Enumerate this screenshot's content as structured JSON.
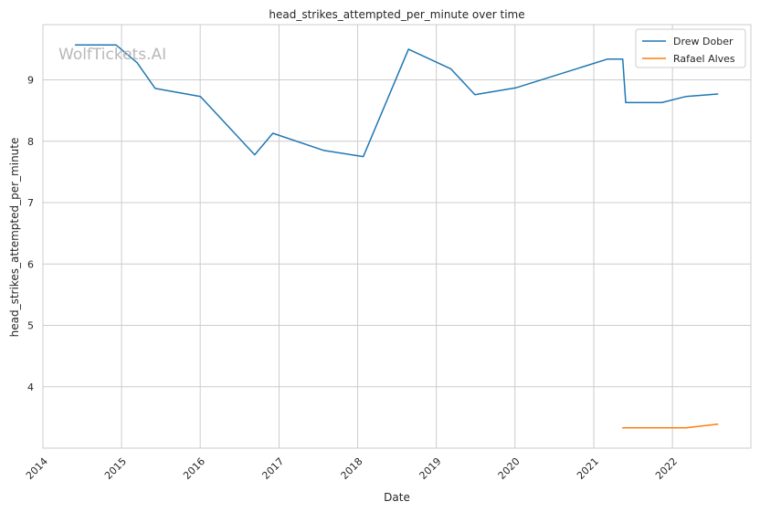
{
  "chart_data": {
    "type": "line",
    "title": "head_strikes_attempted_per_minute over time",
    "xlabel": "Date",
    "ylabel": "head_strikes_attempted_per_minute",
    "watermark": "WolfTickets.AI",
    "x_ticks": [
      "2014",
      "2015",
      "2016",
      "2017",
      "2018",
      "2019",
      "2020",
      "2021",
      "2022"
    ],
    "y_ticks": [
      "4",
      "5",
      "6",
      "7",
      "8",
      "9"
    ],
    "xlim": [
      "2014-01-01",
      "2022-12-31"
    ],
    "ylim": [
      3.0,
      9.9
    ],
    "grid": true,
    "legend_position": "top-right",
    "series": [
      {
        "name": "Drew Dober",
        "color": "#1f77b4",
        "points": [
          {
            "x": "2014-06-01",
            "y": 9.57
          },
          {
            "x": "2014-12-06",
            "y": 9.57
          },
          {
            "x": "2015-03-14",
            "y": 9.28
          },
          {
            "x": "2015-06-06",
            "y": 8.86
          },
          {
            "x": "2016-01-02",
            "y": 8.73
          },
          {
            "x": "2016-09-10",
            "y": 7.78
          },
          {
            "x": "2016-12-03",
            "y": 8.13
          },
          {
            "x": "2017-07-29",
            "y": 7.85
          },
          {
            "x": "2018-01-27",
            "y": 7.75
          },
          {
            "x": "2018-08-25",
            "y": 9.5
          },
          {
            "x": "2019-03-09",
            "y": 9.18
          },
          {
            "x": "2019-06-29",
            "y": 8.76
          },
          {
            "x": "2020-01-04",
            "y": 8.87
          },
          {
            "x": "2021-03-06",
            "y": 9.34
          },
          {
            "x": "2021-05-15",
            "y": 9.34
          },
          {
            "x": "2021-05-29",
            "y": 8.63
          },
          {
            "x": "2021-11-13",
            "y": 8.63
          },
          {
            "x": "2022-03-05",
            "y": 8.73
          },
          {
            "x": "2022-07-30",
            "y": 8.77
          }
        ]
      },
      {
        "name": "Rafael Alves",
        "color": "#ff7f0e",
        "points": [
          {
            "x": "2021-05-15",
            "y": 3.33
          },
          {
            "x": "2022-03-05",
            "y": 3.33
          },
          {
            "x": "2022-07-30",
            "y": 3.39
          }
        ]
      }
    ]
  }
}
